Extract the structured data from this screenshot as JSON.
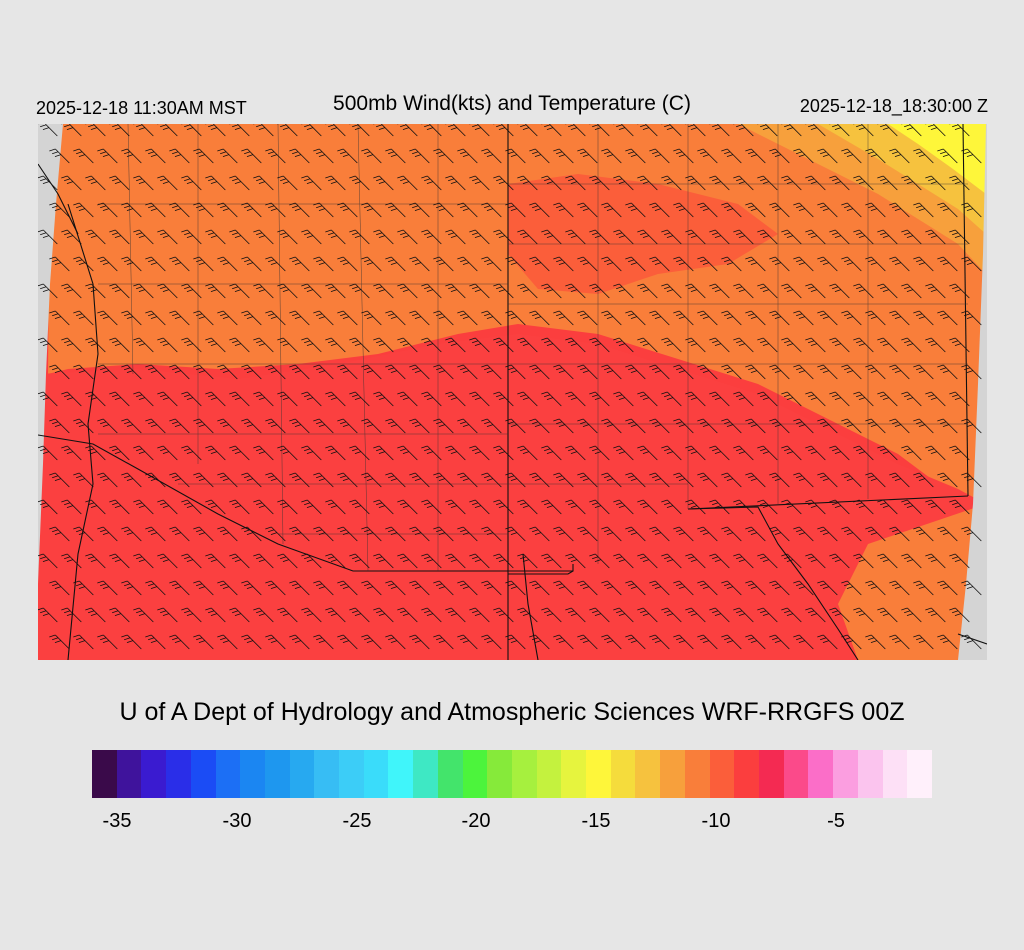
{
  "header": {
    "local_time": "2025-12-18 11:30AM MST",
    "title": "500mb Wind(kts) and Temperature (C)",
    "valid_time": "2025-12-18_18:30:00 Z"
  },
  "credit": "U of A Dept of Hydrology and Atmospheric Sciences WRF-RRGFS 00Z",
  "colorbar": {
    "colors": [
      "#3a0a4a",
      "#3f139c",
      "#3a1bd0",
      "#2a2ee8",
      "#1b4cf5",
      "#1c6ff5",
      "#1b86f2",
      "#1e97ef",
      "#27a9f0",
      "#37bdf4",
      "#3ccdf7",
      "#3adcfa",
      "#40f5fa",
      "#3ee8c4",
      "#43e46b",
      "#4cf43c",
      "#86ea3a",
      "#a6f03e",
      "#c4f23e",
      "#e6f43e",
      "#fef63a",
      "#f5dc3c",
      "#f6c23e",
      "#f7a03c",
      "#f97e3a",
      "#fb5e3a",
      "#fb3e3e",
      "#f42a52",
      "#fb4a8a",
      "#fb6ec8",
      "#fb9ee0",
      "#fbc4ee",
      "#fde0f6",
      "#fff0fb"
    ],
    "ticks": [
      "-35",
      "-30",
      "-25",
      "-20",
      "-15",
      "-10",
      "-5"
    ]
  },
  "map": {
    "temperature_classes_legend": [
      "#fb3e3e",
      "#f97e3a",
      "#f7a03c",
      "#f6c23e",
      "#fef63a",
      "#fb5e3a"
    ],
    "barb_direction": "northwest"
  }
}
